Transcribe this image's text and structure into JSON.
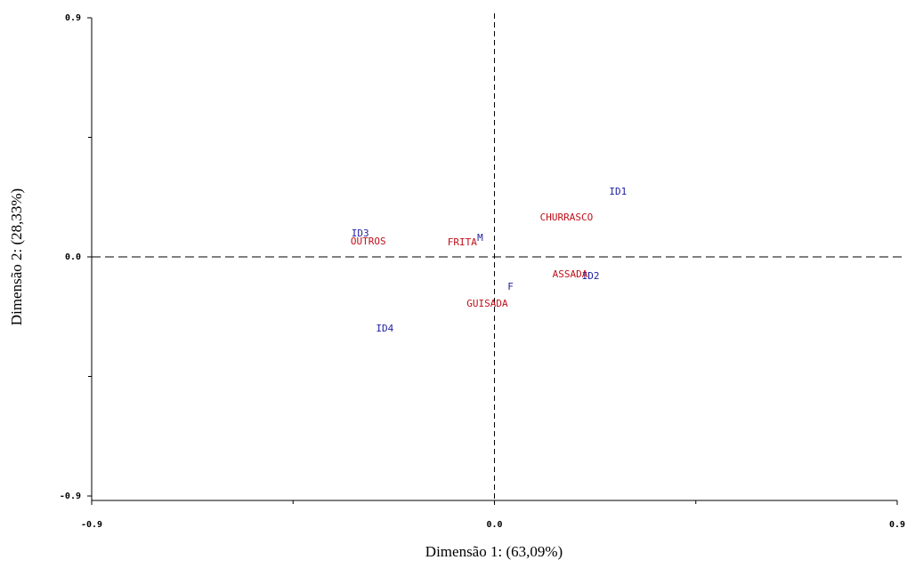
{
  "chart_data": {
    "type": "scatter",
    "x_label": "Dimensão 1: (63,09%)",
    "y_label": "Dimensão 2: (28,33%)",
    "xlim": [
      -0.9,
      0.9
    ],
    "ylim": [
      -0.9,
      0.9
    ],
    "xticks": [
      -0.9,
      {
        "value": 0,
        "label": "0.0"
      },
      0.9
    ],
    "yticks": [
      -0.9,
      {
        "value": 0,
        "label": "0.0"
      },
      0.9
    ],
    "series": [
      {
        "color": "#1f1f9e",
        "labels": [
          "ID1",
          "ID2",
          "ID3",
          "ID4",
          "M",
          "F"
        ],
        "x": [
          0.276,
          0.215,
          -0.3,
          -0.245,
          -0.032,
          0.036
        ],
        "values": [
          0.244,
          -0.074,
          0.087,
          -0.271,
          0.07,
          -0.114
        ]
      },
      {
        "color": "#c0101a",
        "labels": [
          "CHURRASCO",
          "ASSADA",
          "OUTROS",
          "FRITA",
          "GUISADA"
        ],
        "x": [
          0.161,
          0.169,
          -0.282,
          -0.072,
          -0.016
        ],
        "values": [
          0.147,
          -0.067,
          0.057,
          0.054,
          -0.177
        ]
      }
    ]
  }
}
